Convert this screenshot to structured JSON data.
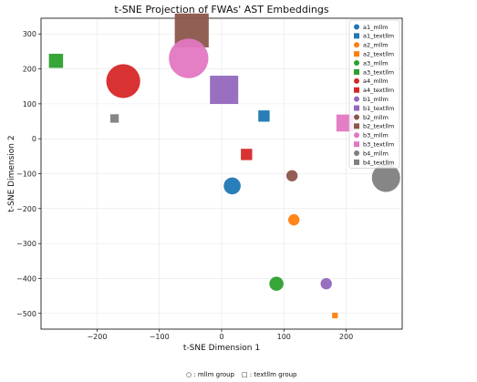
{
  "chart_data": {
    "type": "scatter",
    "title": "t-SNE Projection of FWAs' AST Embeddings",
    "xlabel": "t-SNE Dimension 1",
    "ylabel": "t-SNE Dimension 2",
    "xlim": [
      -290,
      290
    ],
    "ylim": [
      -545,
      345
    ],
    "xticks": [
      -200,
      -100,
      0,
      100,
      200
    ],
    "yticks": [
      -500,
      -400,
      -300,
      -200,
      -100,
      0,
      100,
      200,
      300
    ],
    "xtick_labels": [
      "−200",
      "−100",
      "0",
      "100",
      "200"
    ],
    "ytick_labels": [
      "−500",
      "−400",
      "−300",
      "−200",
      "−100",
      "0",
      "100",
      "200",
      "300"
    ],
    "grid": true,
    "legend_placement": "top-right",
    "series": [
      {
        "name": "a1_mllm",
        "marker": "circle",
        "color": "#1f77b4",
        "x": 17,
        "y": -135,
        "size": 6
      },
      {
        "name": "a1_textllm",
        "marker": "square",
        "color": "#1f77b4",
        "x": 68,
        "y": 65,
        "size": 4
      },
      {
        "name": "a2_mllm",
        "marker": "circle",
        "color": "#ff7f0e",
        "x": 116,
        "y": -232,
        "size": 4
      },
      {
        "name": "a2_textllm",
        "marker": "square",
        "color": "#ff7f0e",
        "x": 182,
        "y": -506,
        "size": 2
      },
      {
        "name": "a3_mllm",
        "marker": "circle",
        "color": "#2ca02c",
        "x": 88,
        "y": -415,
        "size": 5
      },
      {
        "name": "a3_textllm",
        "marker": "square",
        "color": "#2ca02c",
        "x": -266,
        "y": 223,
        "size": 5
      },
      {
        "name": "a4_mllm",
        "marker": "circle",
        "color": "#d62728",
        "x": -158,
        "y": 165,
        "size": 12
      },
      {
        "name": "a4_textllm",
        "marker": "square",
        "color": "#d62728",
        "x": 40,
        "y": -45,
        "size": 4
      },
      {
        "name": "b1_mllm",
        "marker": "circle",
        "color": "#9467bd",
        "x": 168,
        "y": -415,
        "size": 4
      },
      {
        "name": "b1_textllm",
        "marker": "square",
        "color": "#9467bd",
        "x": 4,
        "y": 140,
        "size": 10
      },
      {
        "name": "b2_mllm",
        "marker": "circle",
        "color": "#8c564b",
        "x": 113,
        "y": -106,
        "size": 4
      },
      {
        "name": "b2_textllm",
        "marker": "square",
        "color": "#8c564b",
        "x": -48,
        "y": 310,
        "size": 12
      },
      {
        "name": "b3_mllm",
        "marker": "circle",
        "color": "#e377c2",
        "x": -53,
        "y": 230,
        "size": 14
      },
      {
        "name": "b3_textllm",
        "marker": "square",
        "color": "#e377c2",
        "x": 198,
        "y": 45,
        "size": 6
      },
      {
        "name": "b4_mllm",
        "marker": "circle",
        "color": "#7f7f7f",
        "x": 264,
        "y": -112,
        "size": 10
      },
      {
        "name": "b4_textllm",
        "marker": "square",
        "color": "#7f7f7f",
        "x": -172,
        "y": 58,
        "size": 3
      }
    ],
    "note": {
      "mllm": "○ : mllm group",
      "textllm": "□ : textllm group"
    }
  }
}
